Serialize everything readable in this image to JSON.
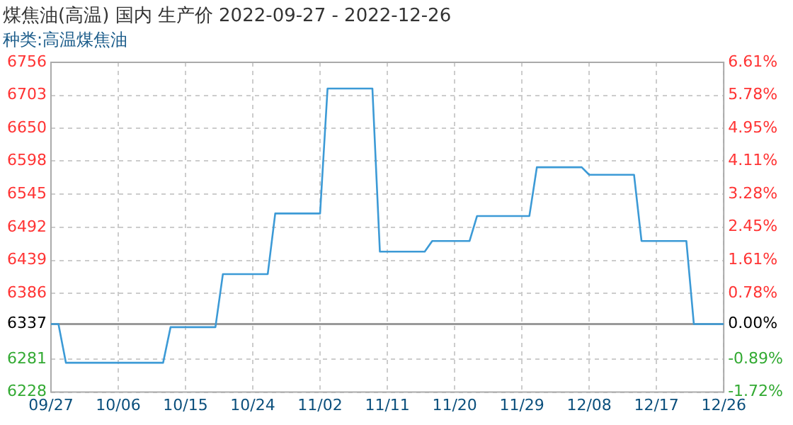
{
  "chart_data": {
    "type": "line",
    "title": "煤焦油(高温) 国内 生产价 2022-09-27 - 2022-12-26",
    "subtitle": "种类:高温煤焦油",
    "x": [
      "2022-09-27",
      "2022-09-28",
      "2022-09-29",
      "2022-10-12",
      "2022-10-13",
      "2022-10-19",
      "2022-10-20",
      "2022-10-26",
      "2022-10-27",
      "2022-11-02",
      "2022-11-03",
      "2022-11-09",
      "2022-11-10",
      "2022-11-16",
      "2022-11-17",
      "2022-11-22",
      "2022-11-23",
      "2022-11-30",
      "2022-12-01",
      "2022-12-07",
      "2022-12-08",
      "2022-12-14",
      "2022-12-15",
      "2022-12-21",
      "2022-12-22",
      "2022-12-26"
    ],
    "series": [
      {
        "color": "#3c9ad6",
        "values": [
          6337,
          6337,
          6275,
          6275,
          6332,
          6332,
          6417,
          6417,
          6514,
          6514,
          6714,
          6714,
          6453,
          6453,
          6470,
          6470,
          6510,
          6510,
          6588,
          6588,
          6576,
          6576,
          6470,
          6470,
          6337,
          6337
        ]
      }
    ],
    "xlim": [
      "2022-09-27",
      "2022-12-26"
    ],
    "xticks": [
      {
        "value": "2022-09-27",
        "label": "09/27"
      },
      {
        "value": "2022-10-06",
        "label": "10/06"
      },
      {
        "value": "2022-10-15",
        "label": "10/15"
      },
      {
        "value": "2022-10-24",
        "label": "10/24"
      },
      {
        "value": "2022-11-02",
        "label": "11/02"
      },
      {
        "value": "2022-11-11",
        "label": "11/11"
      },
      {
        "value": "2022-11-20",
        "label": "11/20"
      },
      {
        "value": "2022-11-29",
        "label": "11/29"
      },
      {
        "value": "2022-12-08",
        "label": "12/08"
      },
      {
        "value": "2022-12-17",
        "label": "12/17"
      },
      {
        "value": "2022-12-26",
        "label": "12/26"
      }
    ],
    "ylim": [
      6228,
      6756
    ],
    "yticks": [
      6228,
      6281,
      6337,
      6386,
      6439,
      6492,
      6545,
      6598,
      6650,
      6703,
      6756
    ],
    "y2lim": [
      -1.72,
      6.61
    ],
    "y2ticks": [
      {
        "value": -1.72,
        "label": "-1.72%"
      },
      {
        "value": -0.89,
        "label": "-0.89%"
      },
      {
        "value": 0,
        "label": "0.00%"
      },
      {
        "value": 0.78,
        "label": "0.78%"
      },
      {
        "value": 1.61,
        "label": "1.61%"
      },
      {
        "value": 2.45,
        "label": "2.45%"
      },
      {
        "value": 3.28,
        "label": "3.28%"
      },
      {
        "value": 4.11,
        "label": "4.11%"
      },
      {
        "value": 4.95,
        "label": "4.95%"
      },
      {
        "value": 5.78,
        "label": "5.78%"
      },
      {
        "value": 6.61,
        "label": "6.61%"
      }
    ],
    "ref_lines": [
      {
        "axis": "y",
        "value": 6337,
        "color": "#999999"
      }
    ],
    "grid": true,
    "legend": false,
    "marker": "none",
    "line_style": "solid"
  }
}
